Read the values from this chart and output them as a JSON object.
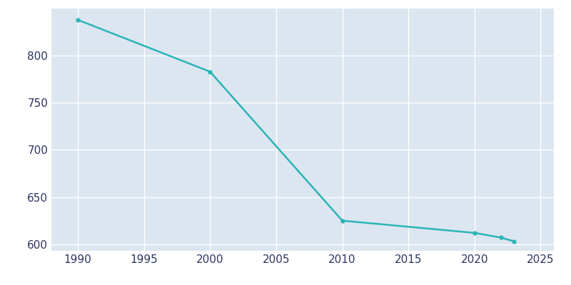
{
  "years": [
    1990,
    2000,
    2010,
    2020,
    2022,
    2023
  ],
  "population": [
    838,
    783,
    625,
    612,
    607,
    603
  ],
  "line_color": "#2ab5b5",
  "marker": "o",
  "marker_size": 3.5,
  "background_color": "#dce6f1",
  "fig_background": "#ffffff",
  "grid_color": "#ffffff",
  "xlim": [
    1988,
    2026
  ],
  "ylim": [
    593,
    850
  ],
  "xticks": [
    1990,
    1995,
    2000,
    2005,
    2010,
    2015,
    2020,
    2025
  ],
  "yticks": [
    600,
    650,
    700,
    750,
    800
  ],
  "tick_label_color": "#2d3561",
  "tick_fontsize": 11,
  "linewidth": 1.8
}
